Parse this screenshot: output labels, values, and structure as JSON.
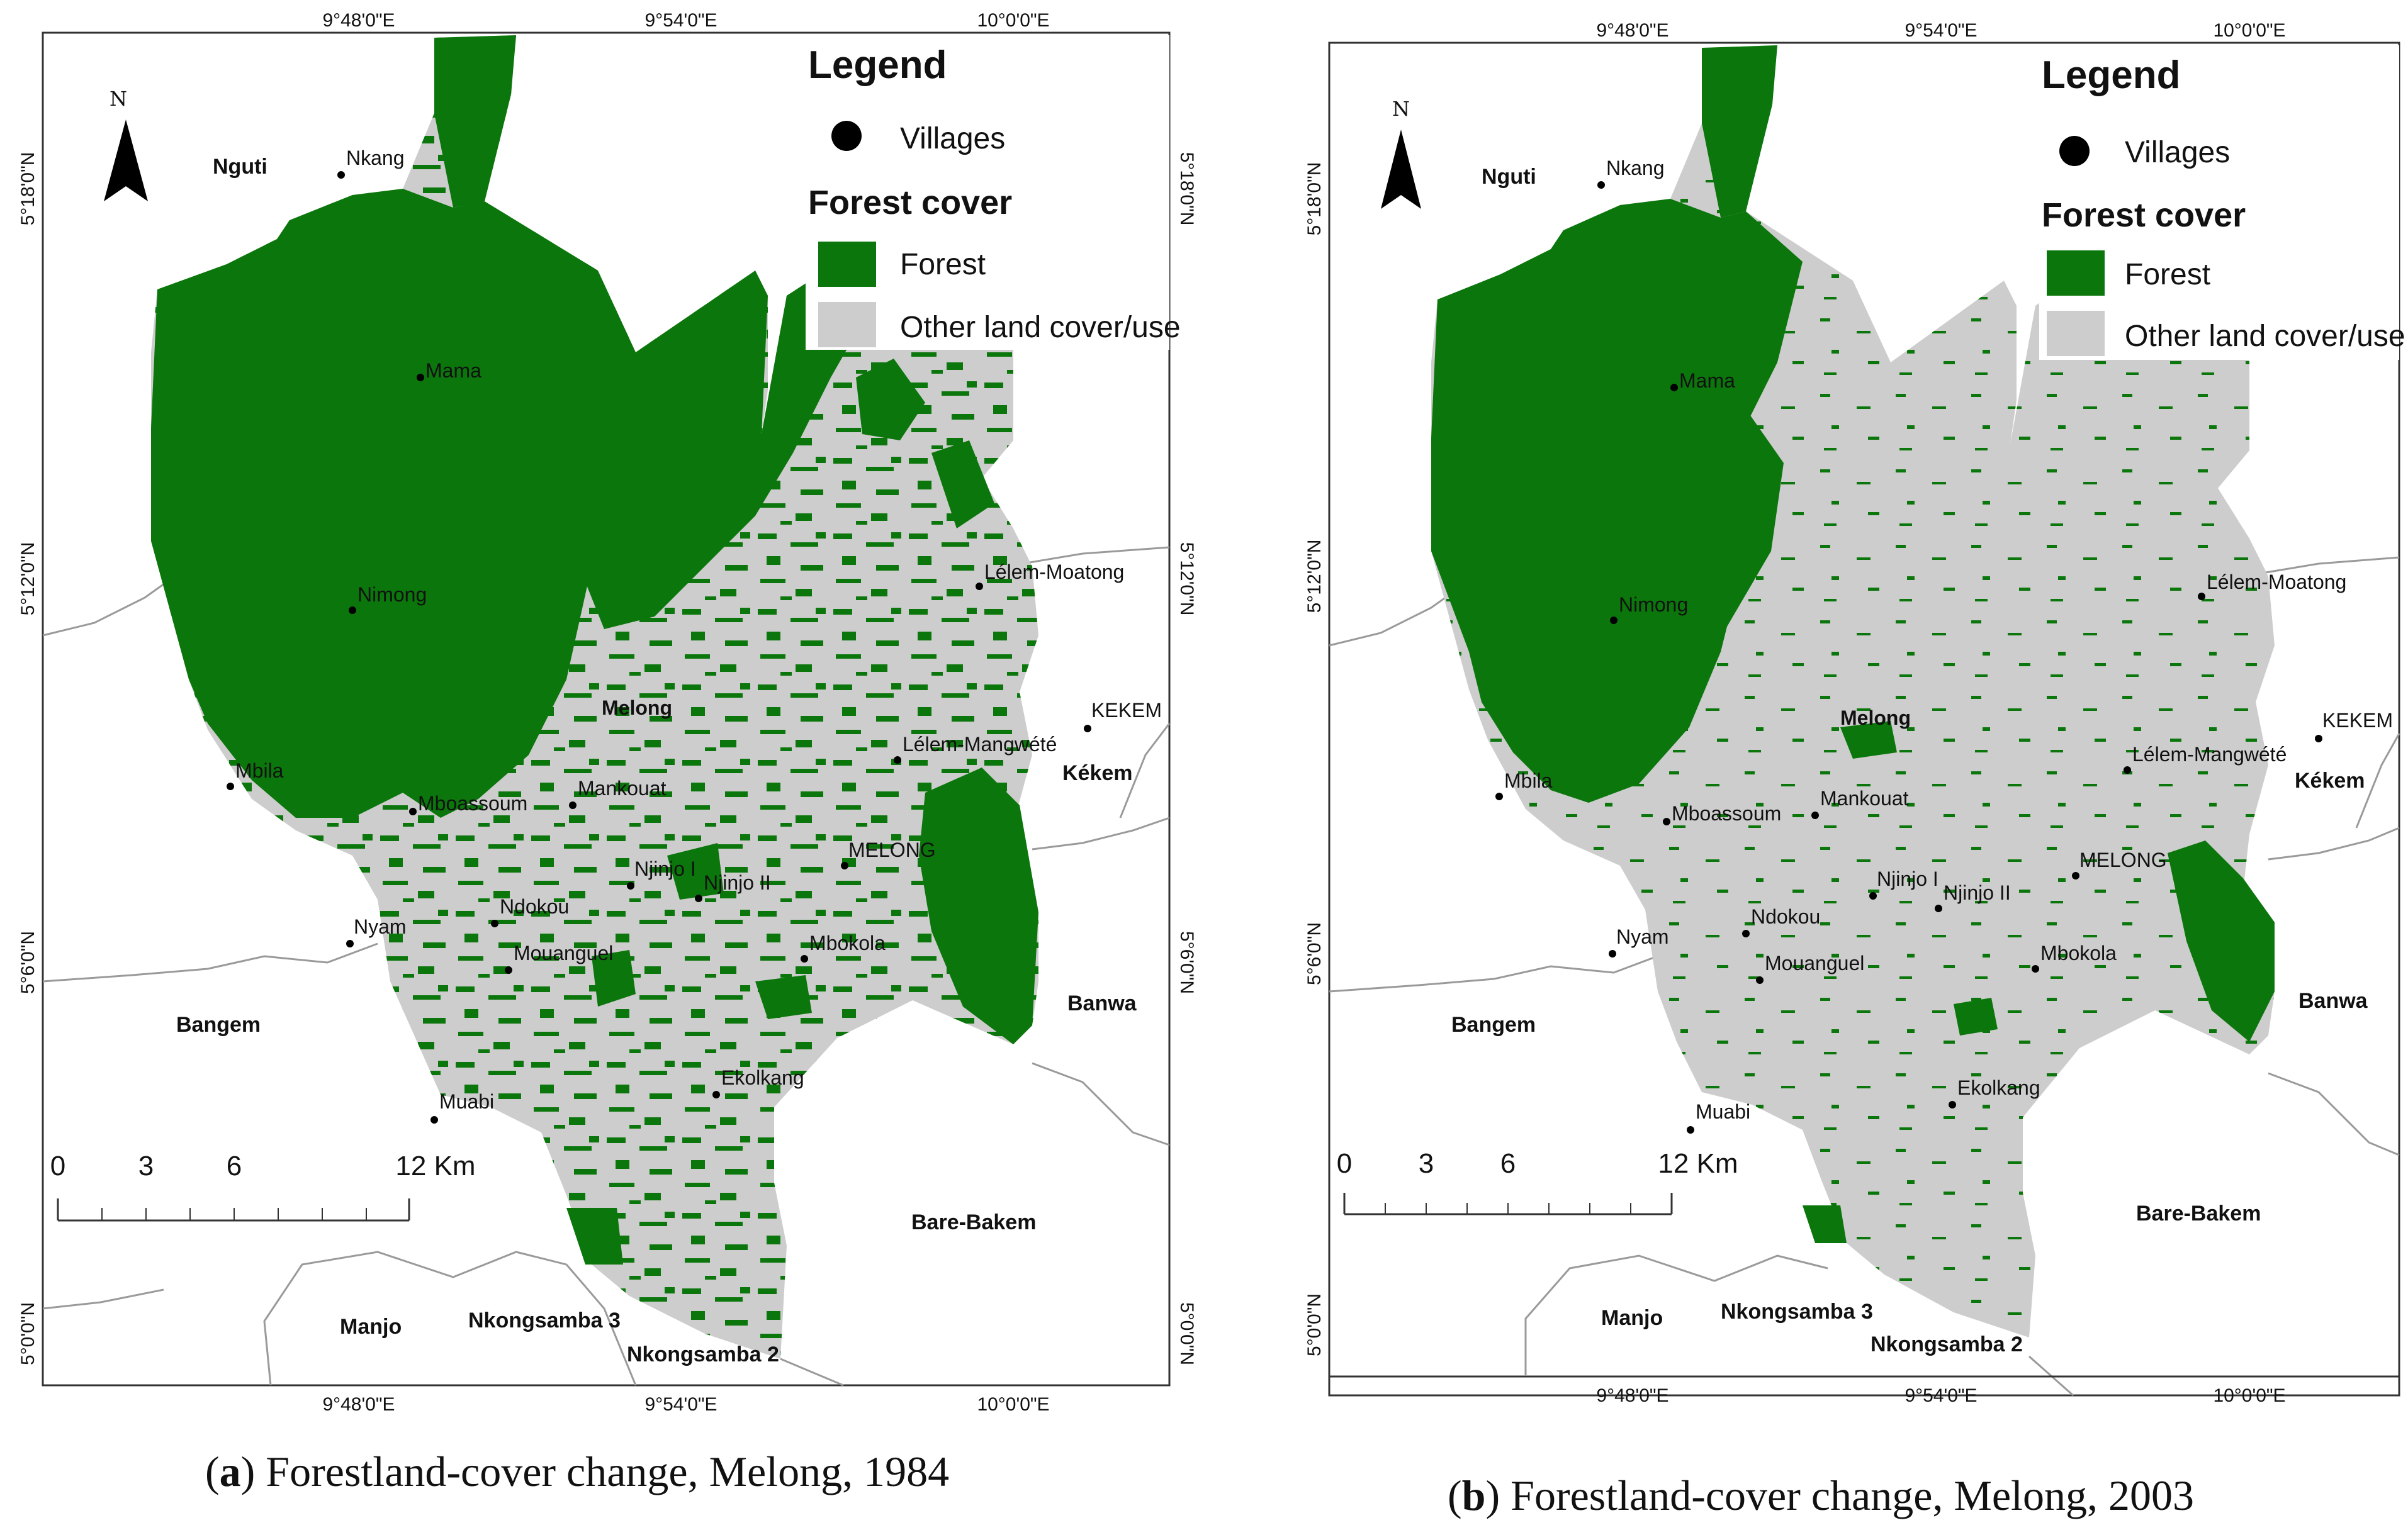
{
  "maps": [
    {
      "id": "a",
      "caption_letter": "a",
      "caption_text": ") Forestland-cover change, Melong, 1984",
      "year": 1984,
      "forest_level": "high"
    },
    {
      "id": "b",
      "caption_letter": "b",
      "caption_text": ") Forestland-cover change, Melong, 2003",
      "year": 2003,
      "forest_level": "low"
    }
  ],
  "legend": {
    "title": "Legend",
    "villages_label": "Villages",
    "section_title": "Forest cover",
    "forest_label": "Forest",
    "other_label": "Other land cover/use"
  },
  "coordinates": {
    "lon": [
      "9°48'0\"E",
      "9°54'0\"E",
      "10°0'0\"E"
    ],
    "lat": [
      "5°18'0\"N",
      "5°12'0\"N",
      "5°6'0\"N",
      "5°0'0\"N"
    ]
  },
  "north_label": "N",
  "scale": {
    "ticks": [
      "0",
      "3",
      "6",
      "12 Km"
    ]
  },
  "villages": [
    "Nkang",
    "Mama",
    "Nimong",
    "Mbila",
    "Mboassoum",
    "Mankouat",
    "Melong",
    "Lélem-Moatong",
    "Lélem-Mangwété",
    "MELONG",
    "Njinjo I",
    "Njinjo II",
    "Ndokou",
    "Mouanguel",
    "Nyam",
    "Mbokola",
    "Ekolkang",
    "Muabi",
    "KEKEM"
  ],
  "regions": [
    "Nguti",
    "Kékem",
    "Banwa",
    "Bangem",
    "Bare-Bakem",
    "Manjo",
    "Nkongsamba 3",
    "Nkongsamba 2"
  ],
  "colors": {
    "forest": "#0b760b",
    "other": "#cdcdcd",
    "frame": "#333333",
    "boundary": "#999999"
  }
}
